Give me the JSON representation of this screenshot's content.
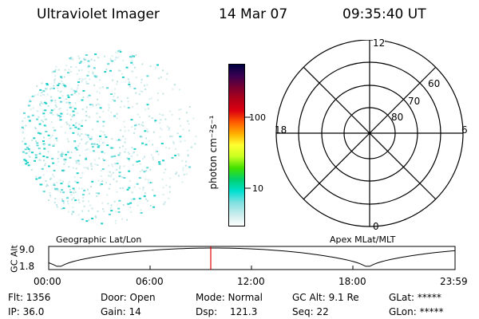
{
  "header": {
    "instrument": "Ultraviolet Imager",
    "date": "14 Mar 07",
    "time": "09:35:40 UT"
  },
  "colorbar": {
    "unit_label": "photon cm⁻²s⁻¹",
    "ticks": [
      "100",
      "10"
    ],
    "colors": [
      "#000040",
      "#3a0050",
      "#7a0030",
      "#b00018",
      "#dd0010",
      "#ff5a00",
      "#ffb000",
      "#ffff30",
      "#c8ff20",
      "#40e000",
      "#00d070",
      "#00e0d0",
      "#80e0e0",
      "#c8ecec",
      "#ffffff"
    ]
  },
  "polar_plot": {
    "mlt_labels": {
      "top": "12",
      "left": "18",
      "right": "6",
      "bottom": "0"
    },
    "lat_labels": [
      "60",
      "70",
      "80"
    ]
  },
  "altitude_panel": {
    "left_title": "Geographic Lat/Lon",
    "right_title": "Apex MLat/MLT",
    "axis_label": "GC Alt",
    "y_ticks": [
      "9.0",
      "1.8"
    ],
    "x_ticks": [
      "00:00",
      "06:00",
      "12:00",
      "18:00",
      "23:59"
    ],
    "marker_color": "#e00000"
  },
  "status": {
    "flt": "Flt: 1356",
    "ip": "IP: 36.0",
    "door": "Door: Open",
    "gain": "Gain: 14",
    "mode": "Mode: Normal",
    "dsp": "Dsp:",
    "dsp_value": "121.3",
    "gc_alt": "GC Alt: 9.1 Re",
    "seq": "Seq: 22",
    "glat": "GLat: *****",
    "glon": "GLon: *****"
  }
}
